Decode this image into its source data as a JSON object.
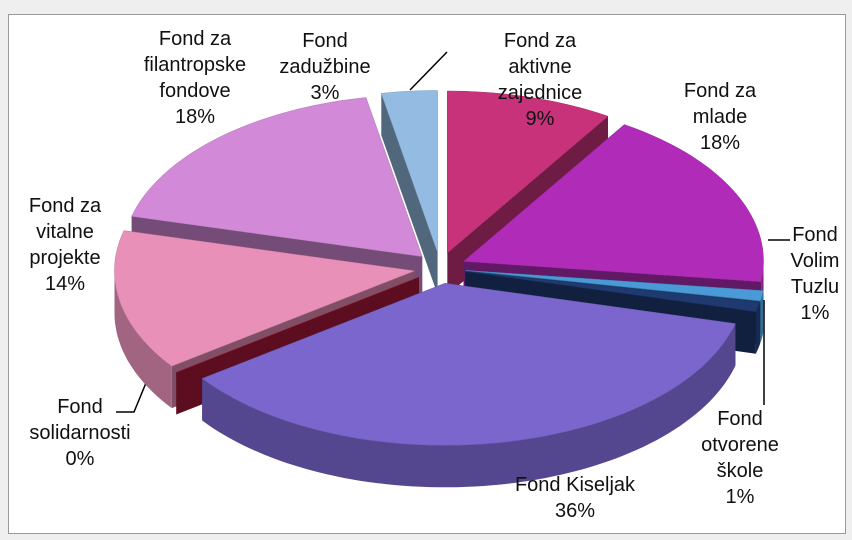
{
  "chart_data": {
    "type": "pie",
    "categories": [
      "Fond za aktivne zajednice",
      "Fond za mlade",
      "Fond Volim Tuzlu",
      "Fond otvorene škole",
      "Fond Kiseljak",
      "Fond solidarnosti",
      "Fond za vitalne projekte",
      "Fond za filantropske fondove",
      "Fond zadužbine"
    ],
    "values": [
      9,
      18,
      1,
      1,
      36,
      0,
      14,
      18,
      3
    ],
    "value_labels": [
      "9%",
      "18%",
      "1%",
      "1%",
      "36%",
      "0%",
      "14%",
      "18%",
      "3%"
    ],
    "colors": [
      "#c8327a",
      "#b02cb8",
      "#4a9ad8",
      "#1f3a70",
      "#7a66cc",
      "#a8183a",
      "#e890b8",
      "#d28ad8",
      "#94bce2"
    ]
  }
}
